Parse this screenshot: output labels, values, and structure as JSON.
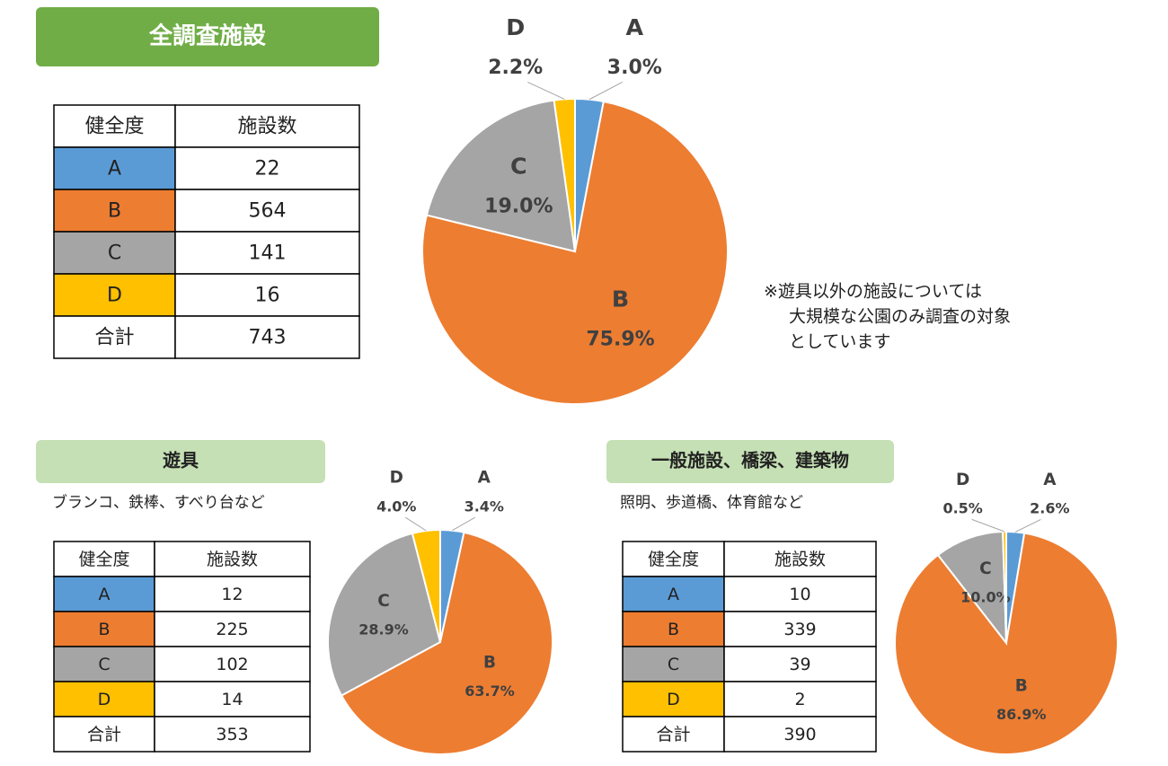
{
  "sections": [
    {
      "title": "全調査施設",
      "table": {
        "header": [
          "健全度",
          "施設数"
        ],
        "rows": [
          [
            "A",
            22
          ],
          [
            "B",
            564
          ],
          [
            "C",
            141
          ],
          [
            "D",
            16
          ],
          [
            "合計",
            743
          ]
        ]
      }
    },
    {
      "title": "遊具",
      "subtitle": "ブランコ、鉄棒、すべり台など",
      "table": {
        "header": [
          "健全度",
          "施設数"
        ],
        "rows": [
          [
            "A",
            12
          ],
          [
            "B",
            225
          ],
          [
            "C",
            102
          ],
          [
            "D",
            14
          ],
          [
            "合計",
            353
          ]
        ]
      }
    },
    {
      "title": "一般施設、橋梁、建築物",
      "subtitle": "照明、歩道橋、体育館など",
      "table": {
        "header": [
          "健全度",
          "施設数"
        ],
        "rows": [
          [
            "A",
            10
          ],
          [
            "B",
            339
          ],
          [
            "C",
            39
          ],
          [
            "D",
            2
          ],
          [
            "合計",
            390
          ]
        ]
      }
    }
  ],
  "note": [
    "※遊具以外の施設については",
    "大規模な公園のみ調査の対象",
    "としています"
  ],
  "chart_data": [
    {
      "type": "pie",
      "categories": [
        "A",
        "B",
        "C",
        "D"
      ],
      "values": [
        3.0,
        75.9,
        19.0,
        2.2
      ],
      "value_labels": [
        "3.0%",
        "75.9%",
        "19.0%",
        "2.2%"
      ],
      "colors": [
        "#5b9bd5",
        "#ed7d31",
        "#a5a5a5",
        "#ffc000"
      ]
    },
    {
      "type": "pie",
      "categories": [
        "A",
        "B",
        "C",
        "D"
      ],
      "values": [
        3.4,
        63.7,
        28.9,
        4.0
      ],
      "value_labels": [
        "3.4%",
        "63.7%",
        "28.9%",
        "4.0%"
      ],
      "colors": [
        "#5b9bd5",
        "#ed7d31",
        "#a5a5a5",
        "#ffc000"
      ]
    },
    {
      "type": "pie",
      "categories": [
        "A",
        "B",
        "C",
        "D"
      ],
      "values": [
        2.6,
        86.9,
        10.0,
        0.5
      ],
      "value_labels": [
        "2.6%",
        "86.9%",
        "10.0%",
        "0.5%"
      ],
      "colors": [
        "#5b9bd5",
        "#ed7d31",
        "#a5a5a5",
        "#ffc000"
      ]
    }
  ]
}
